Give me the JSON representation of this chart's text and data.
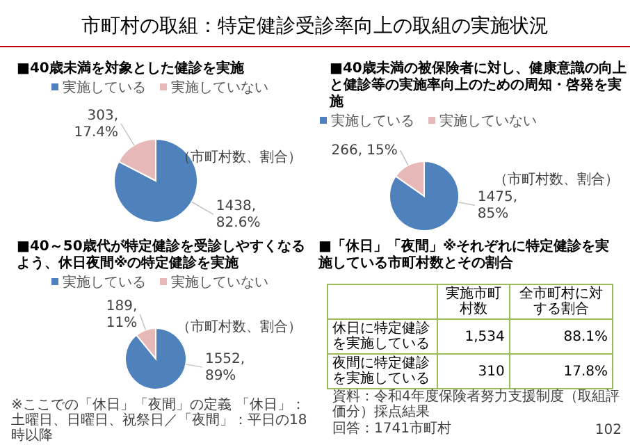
{
  "chart_data": [
    {
      "type": "pie",
      "title": "■40歳未満を対象とした健診を実施",
      "categories": [
        "実施している",
        "実施していない"
      ],
      "values": [
        1438,
        303
      ],
      "colors": [
        "#4f81bd",
        "#e6b9b8"
      ],
      "value_labels": [
        "1438,\n82.6%",
        "303,\n17.4%"
      ],
      "legend": "top",
      "annotations": [
        "市町村の取組：特定健診受診率向上の取組の実施状況",
        "（市町村数、割合）"
      ]
    },
    {
      "type": "pie",
      "title": "■40歳未満の被保険者に対し、健康意識の向上と健診等の実施率向上のための周知・啓発を実施",
      "categories": [
        "実施している",
        "実施していない"
      ],
      "values": [
        1475,
        266
      ],
      "colors": [
        "#4f81bd",
        "#e6b9b8"
      ],
      "value_labels": [
        "1475,\n85%",
        "266, 15%"
      ],
      "legend": "top",
      "annotations": [
        "（市町村数、割合）"
      ]
    },
    {
      "type": "pie",
      "title": "■40～50歳代が特定健診を受診しやすくなるよう、休日夜間※の特定健診を実施",
      "categories": [
        "実施している",
        "実施していない"
      ],
      "values": [
        1552,
        189
      ],
      "colors": [
        "#4f81bd",
        "#e6b9b8"
      ],
      "value_labels": [
        "1552,\n89%",
        "189,\n11%"
      ],
      "legend": "top",
      "annotations": [
        "（市町村数、割合）",
        "※ここでの「休日」「夜間」の定義 「休日」：土曜日、日曜日、祝祭日／「夜間」：平日の18時以降"
      ]
    },
    {
      "type": "other",
      "title": "■「休日」「夜間」※それぞれに特定健診を実施している市町村数とその割合",
      "categories": [
        "休日に特定健診を実施している",
        "夜間に特定健診を実施している"
      ],
      "series": [
        {
          "name": "実施市町村数",
          "values": [
            1534,
            310
          ],
          "value_labels": [
            "1,534",
            "310"
          ]
        },
        {
          "name": "全市町村に対する割合",
          "values": [
            88.1,
            17.8
          ],
          "value_labels": [
            "88.1%",
            "17.8%"
          ]
        }
      ],
      "annotations": [
        "資料：令和4年度保険者努力支援制度（取組評価分）採点結果",
        "回答：1741市町村",
        "102"
      ]
    }
  ]
}
